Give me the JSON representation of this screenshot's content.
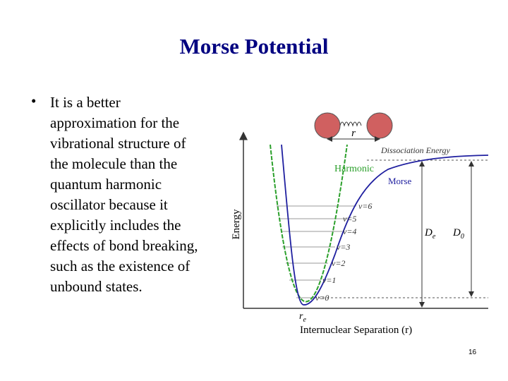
{
  "title": "Morse Potential",
  "bullet": {
    "symbol": "•",
    "lines": [
      "It is a better",
      "approximation for the",
      "vibrational structure of",
      "the molecule than the",
      "quantum harmonic",
      "oscillator because it",
      "explicitly includes the",
      "effects of bond breaking,",
      "such as the existence of",
      "unbound states."
    ]
  },
  "figure": {
    "bond_length_label": "r",
    "dissociation_label": "Dissociation Energy",
    "harmonic_label": "Harmonic",
    "morse_label": "Morse",
    "levels": [
      "v=6",
      "v=5",
      "v=4",
      "v=3",
      "v=2",
      "v=1",
      "v=0"
    ],
    "de_label": {
      "main": "D",
      "sub": "e"
    },
    "d0_label": {
      "main": "D",
      "sub": "0"
    },
    "re_label": {
      "main": "r",
      "sub": "e"
    },
    "y_axis_label": "Energy",
    "x_axis_label": "Internuclear Separation (r)"
  },
  "page_number": "16"
}
